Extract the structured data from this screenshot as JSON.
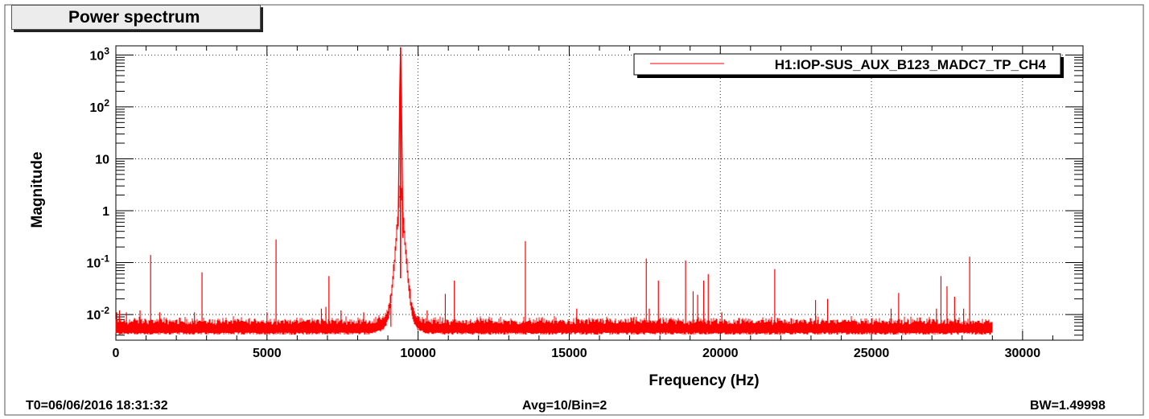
{
  "window": {
    "title": "Power spectrum"
  },
  "footer": {
    "time": "T0=06/06/2016 18:31:32",
    "avg": "Avg=10/Bin=2",
    "bw": "BW=1.49998"
  },
  "colors": {
    "trace": "#ff0000",
    "background": "#ffffff",
    "grid": "#000000"
  },
  "chart_data": {
    "type": "line",
    "title": "Power spectrum",
    "xlabel": "Frequency (Hz)",
    "ylabel": "Magnitude",
    "xlim": [
      0,
      32000
    ],
    "ylim": [
      0.0032,
      1500
    ],
    "yscale": "log",
    "grid": true,
    "legend_position": "top-right",
    "x_ticks": [
      {
        "value": 0,
        "label": "0"
      },
      {
        "value": 5000,
        "label": "5000"
      },
      {
        "value": 10000,
        "label": "10000"
      },
      {
        "value": 15000,
        "label": "15000"
      },
      {
        "value": 20000,
        "label": "20000"
      },
      {
        "value": 25000,
        "label": "25000"
      },
      {
        "value": 30000,
        "label": "30000"
      }
    ],
    "y_ticks": [
      {
        "value": 0.01,
        "base": "10",
        "exp": "-2",
        "label": "10^-2"
      },
      {
        "value": 0.1,
        "base": "10",
        "exp": "-1",
        "label": "10^-1"
      },
      {
        "value": 1,
        "base": "1",
        "exp": "",
        "label": "1"
      },
      {
        "value": 10,
        "base": "10",
        "exp": "",
        "label": "10"
      },
      {
        "value": 100,
        "base": "10",
        "exp": "2",
        "label": "10^2"
      },
      {
        "value": 1000,
        "base": "10",
        "exp": "3",
        "label": "10^3"
      }
    ],
    "series": [
      {
        "name": "H1:IOP-SUS_AUX_B123_MADC7_TP_CH4",
        "color": "#ff0000",
        "x_range": [
          0,
          29000
        ],
        "noise_floor": 0.0058,
        "main_peak": {
          "x": 9420,
          "y": 1400
        },
        "spikes": [
          {
            "x": 30,
            "y": 0.011
          },
          {
            "x": 120,
            "y": 0.012
          },
          {
            "x": 350,
            "y": 0.011
          },
          {
            "x": 800,
            "y": 0.012
          },
          {
            "x": 1150,
            "y": 0.14
          },
          {
            "x": 1450,
            "y": 0.011
          },
          {
            "x": 2600,
            "y": 0.011
          },
          {
            "x": 2850,
            "y": 0.065
          },
          {
            "x": 5000,
            "y": 0.011
          },
          {
            "x": 5300,
            "y": 0.28
          },
          {
            "x": 6800,
            "y": 0.013
          },
          {
            "x": 6950,
            "y": 0.014
          },
          {
            "x": 7050,
            "y": 0.055
          },
          {
            "x": 7450,
            "y": 0.012
          },
          {
            "x": 8200,
            "y": 0.011
          },
          {
            "x": 9100,
            "y": 0.016
          },
          {
            "x": 10300,
            "y": 0.012
          },
          {
            "x": 10900,
            "y": 0.025
          },
          {
            "x": 11200,
            "y": 0.045
          },
          {
            "x": 13550,
            "y": 0.26
          },
          {
            "x": 15250,
            "y": 0.013
          },
          {
            "x": 17550,
            "y": 0.12
          },
          {
            "x": 17650,
            "y": 0.013
          },
          {
            "x": 17950,
            "y": 0.045
          },
          {
            "x": 18850,
            "y": 0.11
          },
          {
            "x": 19100,
            "y": 0.028
          },
          {
            "x": 19250,
            "y": 0.024
          },
          {
            "x": 19450,
            "y": 0.045
          },
          {
            "x": 19600,
            "y": 0.06
          },
          {
            "x": 20050,
            "y": 0.011
          },
          {
            "x": 21800,
            "y": 0.075
          },
          {
            "x": 23150,
            "y": 0.019
          },
          {
            "x": 23550,
            "y": 0.02
          },
          {
            "x": 25650,
            "y": 0.013
          },
          {
            "x": 25900,
            "y": 0.026
          },
          {
            "x": 27150,
            "y": 0.013
          },
          {
            "x": 27300,
            "y": 0.055
          },
          {
            "x": 27500,
            "y": 0.035
          },
          {
            "x": 27750,
            "y": 0.022
          },
          {
            "x": 28050,
            "y": 0.013
          },
          {
            "x": 28250,
            "y": 0.13
          }
        ]
      }
    ]
  }
}
